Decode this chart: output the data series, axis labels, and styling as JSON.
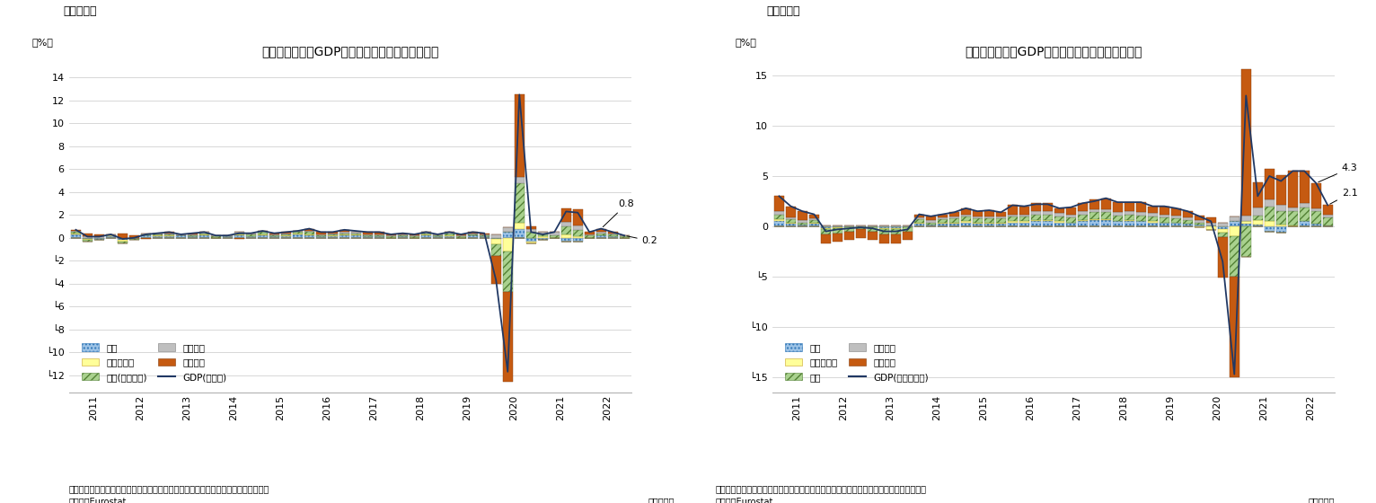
{
  "chart1": {
    "title": "ユーロ圈の実質GDP成長率（需要項目別寄与度）",
    "fig_label": "（図表１）",
    "ylabel": "（%）",
    "note1": "（注）季節調整値、寄与度は前期比伸び率に対する寄与度で最新四半期のデータなし",
    "note2": "（資料）Eurostat",
    "note3": "（四半期）",
    "gdp_label": "GDP(前期比)",
    "inv_label": "投資(在庫除く)",
    "ne_label": "外需",
    "inv_s_label": "在庫変動等",
    "gov_label": "政府消費",
    "pc_label": "個人消費",
    "ylim": [
      -13.5,
      15.5
    ],
    "yticks": [
      -12,
      -10,
      -8,
      -6,
      -4,
      -2,
      0,
      2,
      4,
      6,
      8,
      10,
      12,
      14
    ],
    "ytick_labels": [
      "└12",
      "└10",
      "└8",
      "└6",
      "└4",
      "└2",
      "0",
      "2",
      "4",
      "6",
      "8",
      "10",
      "12",
      "14"
    ],
    "annotation_08": "0.8",
    "annotation_02": "0.2",
    "quarters_per_year": 4,
    "start_year": 2011,
    "end_year": 2022,
    "gdp_line": [
      0.7,
      0.1,
      0.1,
      0.3,
      -0.1,
      0.0,
      0.3,
      0.4,
      0.5,
      0.3,
      0.4,
      0.5,
      0.2,
      0.2,
      0.4,
      0.4,
      0.6,
      0.4,
      0.5,
      0.6,
      0.8,
      0.5,
      0.5,
      0.7,
      0.6,
      0.5,
      0.5,
      0.3,
      0.4,
      0.3,
      0.5,
      0.3,
      0.5,
      0.3,
      0.5,
      0.4,
      -3.7,
      -11.7,
      12.5,
      0.5,
      0.3,
      0.5,
      2.3,
      2.2,
      0.5,
      0.8,
      0.5,
      0.2
    ],
    "net_exports": [
      0.3,
      -0.1,
      -0.2,
      0.1,
      -0.2,
      -0.1,
      0.2,
      0.1,
      0.1,
      0.2,
      0.1,
      0.2,
      0.0,
      0.1,
      0.2,
      0.1,
      0.2,
      0.1,
      0.1,
      0.3,
      0.2,
      0.1,
      0.1,
      0.2,
      0.2,
      0.1,
      0.1,
      0.0,
      0.1,
      0.0,
      0.2,
      0.1,
      0.1,
      0.0,
      0.2,
      0.1,
      -0.1,
      0.5,
      0.8,
      -0.3,
      -0.2,
      0.0,
      -0.3,
      -0.3,
      0.0,
      0.2,
      0.1,
      0.0
    ],
    "inventory": [
      0.1,
      -0.1,
      0.0,
      0.1,
      -0.1,
      0.0,
      0.0,
      0.1,
      0.1,
      0.0,
      0.0,
      0.1,
      0.0,
      0.0,
      0.1,
      0.0,
      0.1,
      0.0,
      0.1,
      0.1,
      0.1,
      0.0,
      0.1,
      0.1,
      0.1,
      0.0,
      0.0,
      0.0,
      0.0,
      0.0,
      0.1,
      0.0,
      0.1,
      0.0,
      0.0,
      0.0,
      -0.5,
      -1.2,
      0.5,
      -0.2,
      0.1,
      0.0,
      0.3,
      0.1,
      0.0,
      0.0,
      0.0,
      0.0
    ],
    "investment": [
      0.1,
      -0.1,
      0.0,
      0.0,
      -0.2,
      -0.1,
      0.1,
      0.1,
      0.1,
      0.0,
      0.1,
      0.1,
      0.1,
      0.0,
      0.1,
      0.2,
      0.2,
      0.1,
      0.1,
      0.1,
      0.2,
      0.1,
      0.1,
      0.1,
      0.1,
      0.1,
      0.1,
      0.1,
      0.1,
      0.1,
      0.1,
      0.1,
      0.2,
      0.1,
      0.1,
      0.1,
      -1.0,
      -3.5,
      3.5,
      0.5,
      0.2,
      0.2,
      0.7,
      0.6,
      0.2,
      0.2,
      0.2,
      0.1
    ],
    "gov_consumption": [
      0.1,
      0.1,
      0.1,
      0.1,
      0.0,
      0.0,
      0.1,
      0.1,
      0.1,
      0.1,
      0.1,
      0.1,
      0.1,
      0.1,
      0.1,
      0.1,
      0.1,
      0.1,
      0.1,
      0.1,
      0.1,
      0.1,
      0.1,
      0.1,
      0.1,
      0.1,
      0.1,
      0.1,
      0.1,
      0.1,
      0.1,
      0.1,
      0.1,
      0.1,
      0.1,
      0.1,
      0.3,
      0.4,
      0.5,
      0.3,
      0.2,
      0.3,
      0.4,
      0.4,
      0.1,
      0.1,
      0.1,
      0.1
    ],
    "private_consumption": [
      0.1,
      0.3,
      0.2,
      0.0,
      0.4,
      0.2,
      -0.1,
      0.0,
      0.1,
      0.0,
      0.1,
      0.0,
      0.0,
      0.0,
      -0.1,
      0.0,
      0.0,
      0.1,
      0.1,
      0.0,
      0.2,
      0.2,
      0.1,
      0.2,
      0.0,
      0.2,
      0.2,
      0.1,
      0.1,
      0.1,
      0.0,
      0.0,
      0.0,
      0.1,
      0.1,
      0.1,
      -2.4,
      -7.9,
      7.2,
      0.2,
      0.0,
      0.0,
      1.2,
      1.4,
      0.2,
      0.3,
      0.1,
      0.0
    ]
  },
  "chart2": {
    "title": "ユーロ圈の実質GDP成長率（需要項目別寄与度）",
    "fig_label": "（図表２）",
    "ylabel": "（%）",
    "note1": "（注）季節調整値、寄与度は前年同期比伸び率に対する寄与度で最新四半期のデータなし",
    "note2": "（資料）Eurostat",
    "note3": "（四半期）",
    "gdp_label": "GDP(前年同期比)",
    "inv_label": "投資",
    "ne_label": "外需",
    "inv_s_label": "在庫変動等",
    "gov_label": "政府消費",
    "pc_label": "個人消費",
    "ylim": [
      -16.5,
      16.5
    ],
    "yticks": [
      -15,
      -10,
      -5,
      0,
      5,
      10,
      15
    ],
    "ytick_labels": [
      "└15",
      "└10",
      "└5",
      "0",
      "5",
      "10",
      "15"
    ],
    "annotation_43": "4.3",
    "annotation_21": "2.1",
    "quarters_per_year": 4,
    "start_year": 2011,
    "end_year": 2022,
    "gdp_line": [
      3.0,
      2.0,
      1.5,
      1.2,
      -0.5,
      -0.3,
      -0.2,
      -0.1,
      -0.2,
      -0.5,
      -0.5,
      -0.3,
      1.2,
      1.0,
      1.2,
      1.4,
      1.8,
      1.5,
      1.6,
      1.4,
      2.1,
      2.0,
      2.2,
      2.2,
      1.8,
      1.9,
      2.3,
      2.5,
      2.8,
      2.4,
      2.4,
      2.4,
      2.0,
      2.0,
      1.8,
      1.5,
      1.0,
      0.5,
      -3.5,
      -14.7,
      13.0,
      3.0,
      5.0,
      4.5,
      5.5,
      5.5,
      4.3,
      2.1
    ],
    "net_exports": [
      0.5,
      0.3,
      0.2,
      0.3,
      -0.2,
      -0.1,
      -0.1,
      0.0,
      -0.1,
      -0.2,
      -0.2,
      -0.1,
      0.3,
      0.2,
      0.3,
      0.3,
      0.4,
      0.3,
      0.3,
      0.3,
      0.4,
      0.4,
      0.5,
      0.5,
      0.4,
      0.4,
      0.5,
      0.6,
      0.6,
      0.5,
      0.5,
      0.5,
      0.4,
      0.4,
      0.4,
      0.3,
      0.2,
      0.1,
      -0.3,
      0.5,
      0.3,
      0.2,
      -0.5,
      -0.6,
      0.0,
      0.5,
      0.3,
      0.1
    ],
    "inventory": [
      0.2,
      0.1,
      0.0,
      0.1,
      -0.1,
      -0.1,
      0.0,
      0.0,
      0.0,
      -0.1,
      -0.1,
      0.0,
      0.1,
      0.0,
      0.1,
      0.1,
      0.1,
      0.1,
      0.1,
      0.1,
      0.1,
      0.1,
      0.1,
      0.1,
      0.1,
      0.0,
      0.1,
      0.1,
      0.1,
      0.0,
      0.1,
      0.0,
      0.1,
      0.0,
      0.0,
      0.0,
      -0.1,
      -0.4,
      -0.3,
      -1.0,
      0.2,
      0.4,
      0.5,
      0.2,
      0.1,
      0.0,
      0.0,
      0.0
    ],
    "investment": [
      0.5,
      0.3,
      0.2,
      0.2,
      -0.5,
      -0.5,
      -0.4,
      -0.3,
      -0.4,
      -0.5,
      -0.5,
      -0.4,
      0.3,
      0.2,
      0.3,
      0.4,
      0.5,
      0.4,
      0.4,
      0.4,
      0.5,
      0.5,
      0.6,
      0.6,
      0.5,
      0.5,
      0.6,
      0.7,
      0.7,
      0.6,
      0.6,
      0.6,
      0.5,
      0.5,
      0.4,
      0.3,
      0.2,
      0.0,
      -0.5,
      -4.0,
      -3.0,
      0.5,
      1.5,
      1.3,
      1.4,
      1.4,
      1.2,
      0.8
    ],
    "gov_consumption": [
      0.3,
      0.2,
      0.2,
      0.2,
      0.1,
      0.1,
      0.1,
      0.1,
      0.1,
      0.1,
      0.1,
      0.1,
      0.2,
      0.2,
      0.2,
      0.2,
      0.2,
      0.2,
      0.2,
      0.2,
      0.2,
      0.2,
      0.3,
      0.3,
      0.3,
      0.3,
      0.3,
      0.3,
      0.3,
      0.3,
      0.3,
      0.3,
      0.3,
      0.3,
      0.3,
      0.3,
      0.2,
      0.3,
      0.4,
      0.5,
      0.6,
      0.8,
      0.7,
      0.6,
      0.4,
      0.4,
      0.3,
      0.3
    ],
    "private_consumption": [
      1.5,
      1.1,
      0.9,
      0.4,
      -0.9,
      -0.8,
      -0.8,
      -0.9,
      -0.8,
      -0.9,
      -0.9,
      -0.8,
      0.3,
      0.4,
      0.3,
      0.4,
      0.6,
      0.5,
      0.6,
      0.4,
      0.9,
      0.8,
      0.8,
      0.8,
      0.5,
      0.7,
      0.8,
      1.0,
      1.1,
      1.0,
      0.9,
      1.0,
      0.7,
      0.8,
      0.7,
      0.6,
      0.5,
      0.5,
      -4.0,
      -10.0,
      14.5,
      2.5,
      3.0,
      3.0,
      3.6,
      3.2,
      2.5,
      0.9
    ]
  },
  "colors": {
    "net_exports": "#9dc3e6",
    "inventory": "#ffff99",
    "investment": "#a9d18e",
    "gov_consumption": "#bfbfbf",
    "private_consumption": "#c55a11",
    "gdp_line": "#203864"
  },
  "edge_colors": {
    "net_exports": "#2e75b6",
    "inventory": "#c9a227",
    "investment": "#538135",
    "gov_consumption": "#808080",
    "private_consumption": "#843c0c"
  }
}
